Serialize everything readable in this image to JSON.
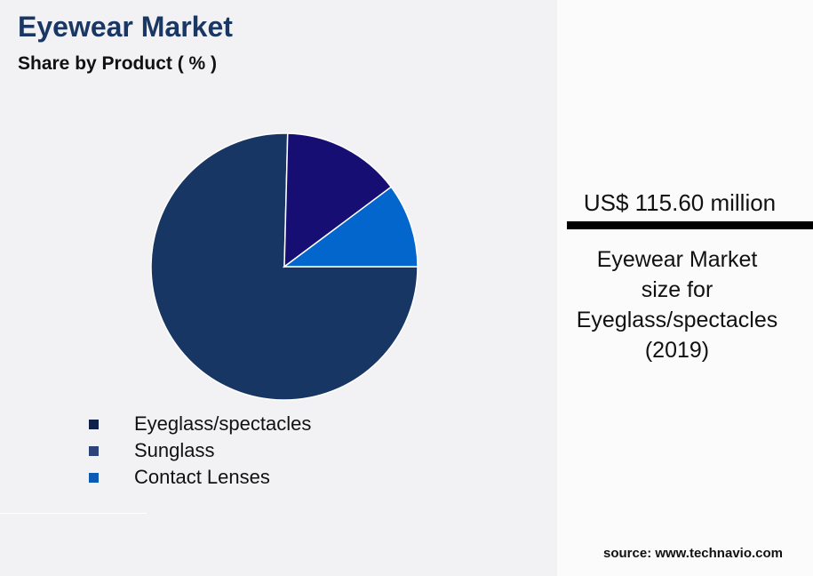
{
  "title": "Eyewear Market",
  "subtitle": "Share by Product ( % )",
  "chart_data": {
    "type": "pie",
    "title": "Eyewear Market",
    "subtitle": "Share by Product ( % )",
    "categories": [
      "Eyeglass/spectacles",
      "Sunglass",
      "Contact Lenses"
    ],
    "values": [
      75.4,
      14.4,
      10.2
    ],
    "slice_colors": [
      "#173663",
      "#170e73",
      "#0366cc"
    ],
    "legend_colors": [
      "#0f2148",
      "#2c4479",
      "#0a5bb3"
    ],
    "legend_position": "bottom"
  },
  "panel": {
    "value": "US$ 115.60 million",
    "description_lines": [
      "Eyewear Market",
      "size for",
      "Eyeglass/spectacles",
      "(2019)"
    ]
  },
  "source": "source: www.technavio.com"
}
